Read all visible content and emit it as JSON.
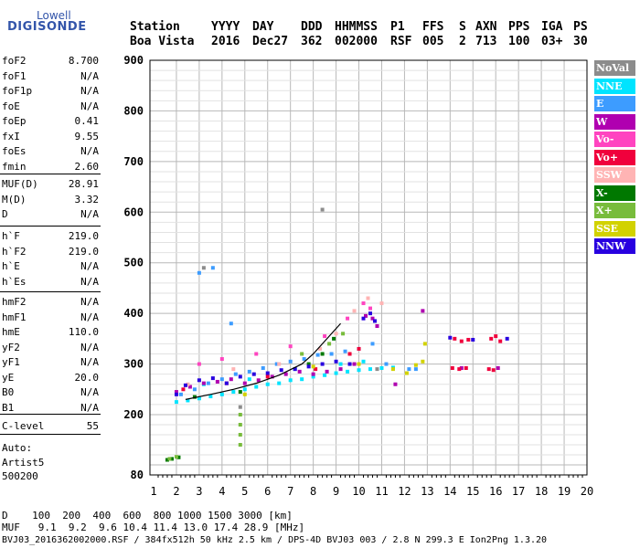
{
  "logo": {
    "top": "Lowell",
    "bottom": "DIGISONDE"
  },
  "header": {
    "labels": [
      "Station",
      "YYYY",
      "DAY",
      "DDD",
      "HHMMSS",
      "P1",
      "FFS",
      "S",
      "AXN",
      "PPS",
      "IGA",
      "PS"
    ],
    "values": [
      "Boa Vista",
      "2016",
      "Dec27",
      "362",
      "002000",
      "RSF",
      "005",
      "2",
      "713",
      "100",
      "03+",
      "30"
    ]
  },
  "params": {
    "group1": [
      {
        "k": "foF2",
        "v": "8.700"
      },
      {
        "k": "foF1",
        "v": "N/A"
      },
      {
        "k": "foF1p",
        "v": "N/A"
      },
      {
        "k": "foE",
        "v": "N/A"
      },
      {
        "k": "foEp",
        "v": "0.41"
      },
      {
        "k": "fxI",
        "v": "9.55"
      },
      {
        "k": "foEs",
        "v": "N/A"
      },
      {
        "k": "fmin",
        "v": "2.60"
      }
    ],
    "group2": [
      {
        "k": "MUF(D)",
        "v": "28.91"
      },
      {
        "k": "M(D)",
        "v": "3.32"
      },
      {
        "k": "D",
        "v": "N/A"
      }
    ],
    "group3": [
      {
        "k": "h`F",
        "v": "219.0"
      },
      {
        "k": "h`F2",
        "v": "219.0"
      },
      {
        "k": "h`E",
        "v": "N/A"
      },
      {
        "k": "h`Es",
        "v": "N/A"
      }
    ],
    "group4": [
      {
        "k": "hmF2",
        "v": "N/A"
      },
      {
        "k": "hmF1",
        "v": "N/A"
      },
      {
        "k": "hmE",
        "v": "110.0"
      },
      {
        "k": "yF2",
        "v": "N/A"
      },
      {
        "k": "yF1",
        "v": "N/A"
      },
      {
        "k": "yE",
        "v": "20.0"
      },
      {
        "k": "B0",
        "v": "N/A"
      },
      {
        "k": "B1",
        "v": "N/A"
      }
    ],
    "group5": [
      {
        "k": "C-level",
        "v": "55"
      }
    ]
  },
  "auto": {
    "l1": "Auto:",
    "l2": "Artist5",
    "l3": "500200"
  },
  "legend": [
    {
      "label": "NoVal",
      "color": "#8c8c8c"
    },
    {
      "label": "NNE",
      "color": "#00e4ff"
    },
    {
      "label": "E",
      "color": "#3d9cff"
    },
    {
      "label": "W",
      "color": "#b000b0"
    },
    {
      "label": "Vo-",
      "color": "#ff44c0"
    },
    {
      "label": "Vo+",
      "color": "#f0003c"
    },
    {
      "label": "SSW",
      "color": "#ffb4b4"
    },
    {
      "label": "X-",
      "color": "#007800"
    },
    {
      "label": "X+",
      "color": "#78bc3c"
    },
    {
      "label": "SSE",
      "color": "#d2d200"
    },
    {
      "label": "NNW",
      "color": "#2800e0"
    }
  ],
  "footer": {
    "row1": "D    100  200  400  600  800 1000 1500 3000 [km]",
    "row2": "MUF   9.1  9.2  9.6 10.4 11.4 13.0 17.4 28.9 [MHz]",
    "row3": "BVJ03_2016362002000.RSF / 384fx512h 50 kHz 2.5 km / DPS-4D BVJ03 003 / 2.8 N 299.3 E Ion2Png 1.3.20"
  },
  "chart_data": {
    "type": "scatter",
    "title": "",
    "xlabel": "",
    "ylabel": "",
    "xlim": [
      1,
      20
    ],
    "ylim": [
      80,
      900
    ],
    "x_ticks": [
      "1",
      "2",
      "3",
      "4",
      "5",
      "6",
      "7",
      "8",
      "9",
      "10",
      "11",
      "12",
      "13",
      "14",
      "15",
      "16",
      "17",
      "18",
      "19",
      "20"
    ],
    "y_ticks": [
      "80",
      "200",
      "300",
      "400",
      "500",
      "600",
      "700",
      "800",
      "900"
    ],
    "grid": true,
    "series": [
      {
        "name": "NNE",
        "color": "#00e4ff",
        "points": [
          [
            2.0,
            225
          ],
          [
            2.5,
            228
          ],
          [
            3.0,
            232
          ],
          [
            3.5,
            236
          ],
          [
            4.0,
            240
          ],
          [
            4.5,
            245
          ],
          [
            5.0,
            250
          ],
          [
            5.5,
            255
          ],
          [
            6.0,
            260
          ],
          [
            6.5,
            262
          ],
          [
            7.0,
            268
          ],
          [
            7.5,
            270
          ],
          [
            8.0,
            275
          ],
          [
            8.5,
            278
          ],
          [
            9.0,
            282
          ],
          [
            9.5,
            285
          ],
          [
            10.0,
            288
          ],
          [
            10.5,
            290
          ],
          [
            11.0,
            292
          ],
          [
            11.5,
            293
          ],
          [
            3.2,
            260
          ],
          [
            5.2,
            270
          ],
          [
            7.2,
            290
          ],
          [
            9.2,
            300
          ],
          [
            10.2,
            305
          ]
        ]
      },
      {
        "name": "E",
        "color": "#3d9cff",
        "points": [
          [
            2.2,
            240
          ],
          [
            2.8,
            250
          ],
          [
            3.4,
            262
          ],
          [
            4.0,
            270
          ],
          [
            4.6,
            280
          ],
          [
            5.2,
            285
          ],
          [
            5.8,
            292
          ],
          [
            6.4,
            300
          ],
          [
            7.0,
            305
          ],
          [
            7.6,
            310
          ],
          [
            8.2,
            318
          ],
          [
            8.8,
            320
          ],
          [
            9.4,
            325
          ],
          [
            10.0,
            330
          ],
          [
            10.6,
            340
          ],
          [
            11.2,
            300
          ],
          [
            12.2,
            290
          ],
          [
            12.5,
            290
          ],
          [
            3.0,
            480
          ],
          [
            3.6,
            490
          ],
          [
            4.4,
            380
          ]
        ]
      },
      {
        "name": "W",
        "color": "#b000b0",
        "points": [
          [
            2.0,
            245
          ],
          [
            2.6,
            255
          ],
          [
            3.2,
            262
          ],
          [
            3.8,
            265
          ],
          [
            4.4,
            270
          ],
          [
            5.0,
            262
          ],
          [
            5.6,
            268
          ],
          [
            6.2,
            275
          ],
          [
            6.8,
            280
          ],
          [
            7.4,
            285
          ],
          [
            8.0,
            280
          ],
          [
            8.6,
            285
          ],
          [
            9.2,
            290
          ],
          [
            9.8,
            300
          ],
          [
            10.3,
            395
          ],
          [
            10.6,
            390
          ],
          [
            10.8,
            375
          ],
          [
            11.6,
            260
          ],
          [
            12.8,
            405
          ],
          [
            14.5,
            292
          ],
          [
            16.1,
            292
          ]
        ]
      },
      {
        "name": "Vo-",
        "color": "#ff44c0",
        "points": [
          [
            3.0,
            300
          ],
          [
            4.0,
            310
          ],
          [
            5.5,
            320
          ],
          [
            7.0,
            335
          ],
          [
            8.5,
            355
          ],
          [
            9.5,
            390
          ],
          [
            10.2,
            420
          ],
          [
            10.5,
            410
          ]
        ]
      },
      {
        "name": "Vo+",
        "color": "#f0003c",
        "points": [
          [
            2.3,
            250
          ],
          [
            4.2,
            262
          ],
          [
            6.0,
            275
          ],
          [
            8.1,
            290
          ],
          [
            9.6,
            320
          ],
          [
            10.0,
            330
          ],
          [
            14.2,
            350
          ],
          [
            14.5,
            345
          ],
          [
            14.8,
            348
          ],
          [
            15.8,
            350
          ],
          [
            16.0,
            355
          ],
          [
            16.2,
            345
          ],
          [
            14.1,
            292
          ],
          [
            14.4,
            290
          ],
          [
            14.7,
            292
          ],
          [
            15.7,
            290
          ],
          [
            15.9,
            288
          ]
        ]
      },
      {
        "name": "SSW",
        "color": "#ffb4b4",
        "points": [
          [
            2.5,
            260
          ],
          [
            4.5,
            290
          ],
          [
            6.5,
            300
          ],
          [
            8.3,
            330
          ],
          [
            9.0,
            360
          ],
          [
            9.8,
            405
          ],
          [
            10.4,
            430
          ],
          [
            11.0,
            420
          ]
        ]
      },
      {
        "name": "X-",
        "color": "#007800",
        "points": [
          [
            1.6,
            110
          ],
          [
            1.8,
            112
          ],
          [
            2.1,
            115
          ],
          [
            2.8,
            235
          ],
          [
            4.8,
            245
          ],
          [
            7.8,
            300
          ],
          [
            8.4,
            320
          ],
          [
            8.9,
            350
          ]
        ]
      },
      {
        "name": "X+",
        "color": "#78bc3c",
        "points": [
          [
            1.7,
            112
          ],
          [
            2.0,
            116
          ],
          [
            4.8,
            200
          ],
          [
            4.8,
            180
          ],
          [
            4.8,
            160
          ],
          [
            4.8,
            140
          ],
          [
            7.5,
            320
          ],
          [
            8.7,
            340
          ],
          [
            9.3,
            360
          ]
        ]
      },
      {
        "name": "SSE",
        "color": "#d2d200",
        "points": [
          [
            5.0,
            240
          ],
          [
            8.0,
            295
          ],
          [
            10.0,
            300
          ],
          [
            11.5,
            290
          ],
          [
            12.1,
            282
          ],
          [
            12.5,
            298
          ],
          [
            12.8,
            305
          ],
          [
            12.9,
            340
          ]
        ]
      },
      {
        "name": "NNW",
        "color": "#2800e0",
        "points": [
          [
            2.0,
            240
          ],
          [
            2.4,
            258
          ],
          [
            3.0,
            268
          ],
          [
            3.6,
            272
          ],
          [
            4.2,
            262
          ],
          [
            4.8,
            275
          ],
          [
            5.4,
            280
          ],
          [
            6.0,
            282
          ],
          [
            6.6,
            288
          ],
          [
            7.2,
            290
          ],
          [
            7.8,
            295
          ],
          [
            8.4,
            300
          ],
          [
            9.0,
            305
          ],
          [
            9.6,
            300
          ],
          [
            10.2,
            390
          ],
          [
            10.5,
            400
          ],
          [
            10.7,
            385
          ],
          [
            16.5,
            350
          ],
          [
            14.0,
            352
          ],
          [
            15.0,
            348
          ]
        ]
      },
      {
        "name": "NoVal",
        "color": "#8c8c8c",
        "points": [
          [
            8.4,
            605
          ],
          [
            3.2,
            490
          ],
          [
            4.8,
            215
          ],
          [
            10.8,
            290
          ]
        ]
      }
    ],
    "trace": {
      "color": "#000000",
      "points": [
        [
          2.4,
          230
        ],
        [
          3.5,
          240
        ],
        [
          4.5,
          250
        ],
        [
          5.5,
          262
        ],
        [
          6.5,
          278
        ],
        [
          7.5,
          300
        ],
        [
          8.0,
          320
        ],
        [
          8.5,
          345
        ],
        [
          9.0,
          370
        ],
        [
          9.2,
          380
        ]
      ]
    }
  }
}
